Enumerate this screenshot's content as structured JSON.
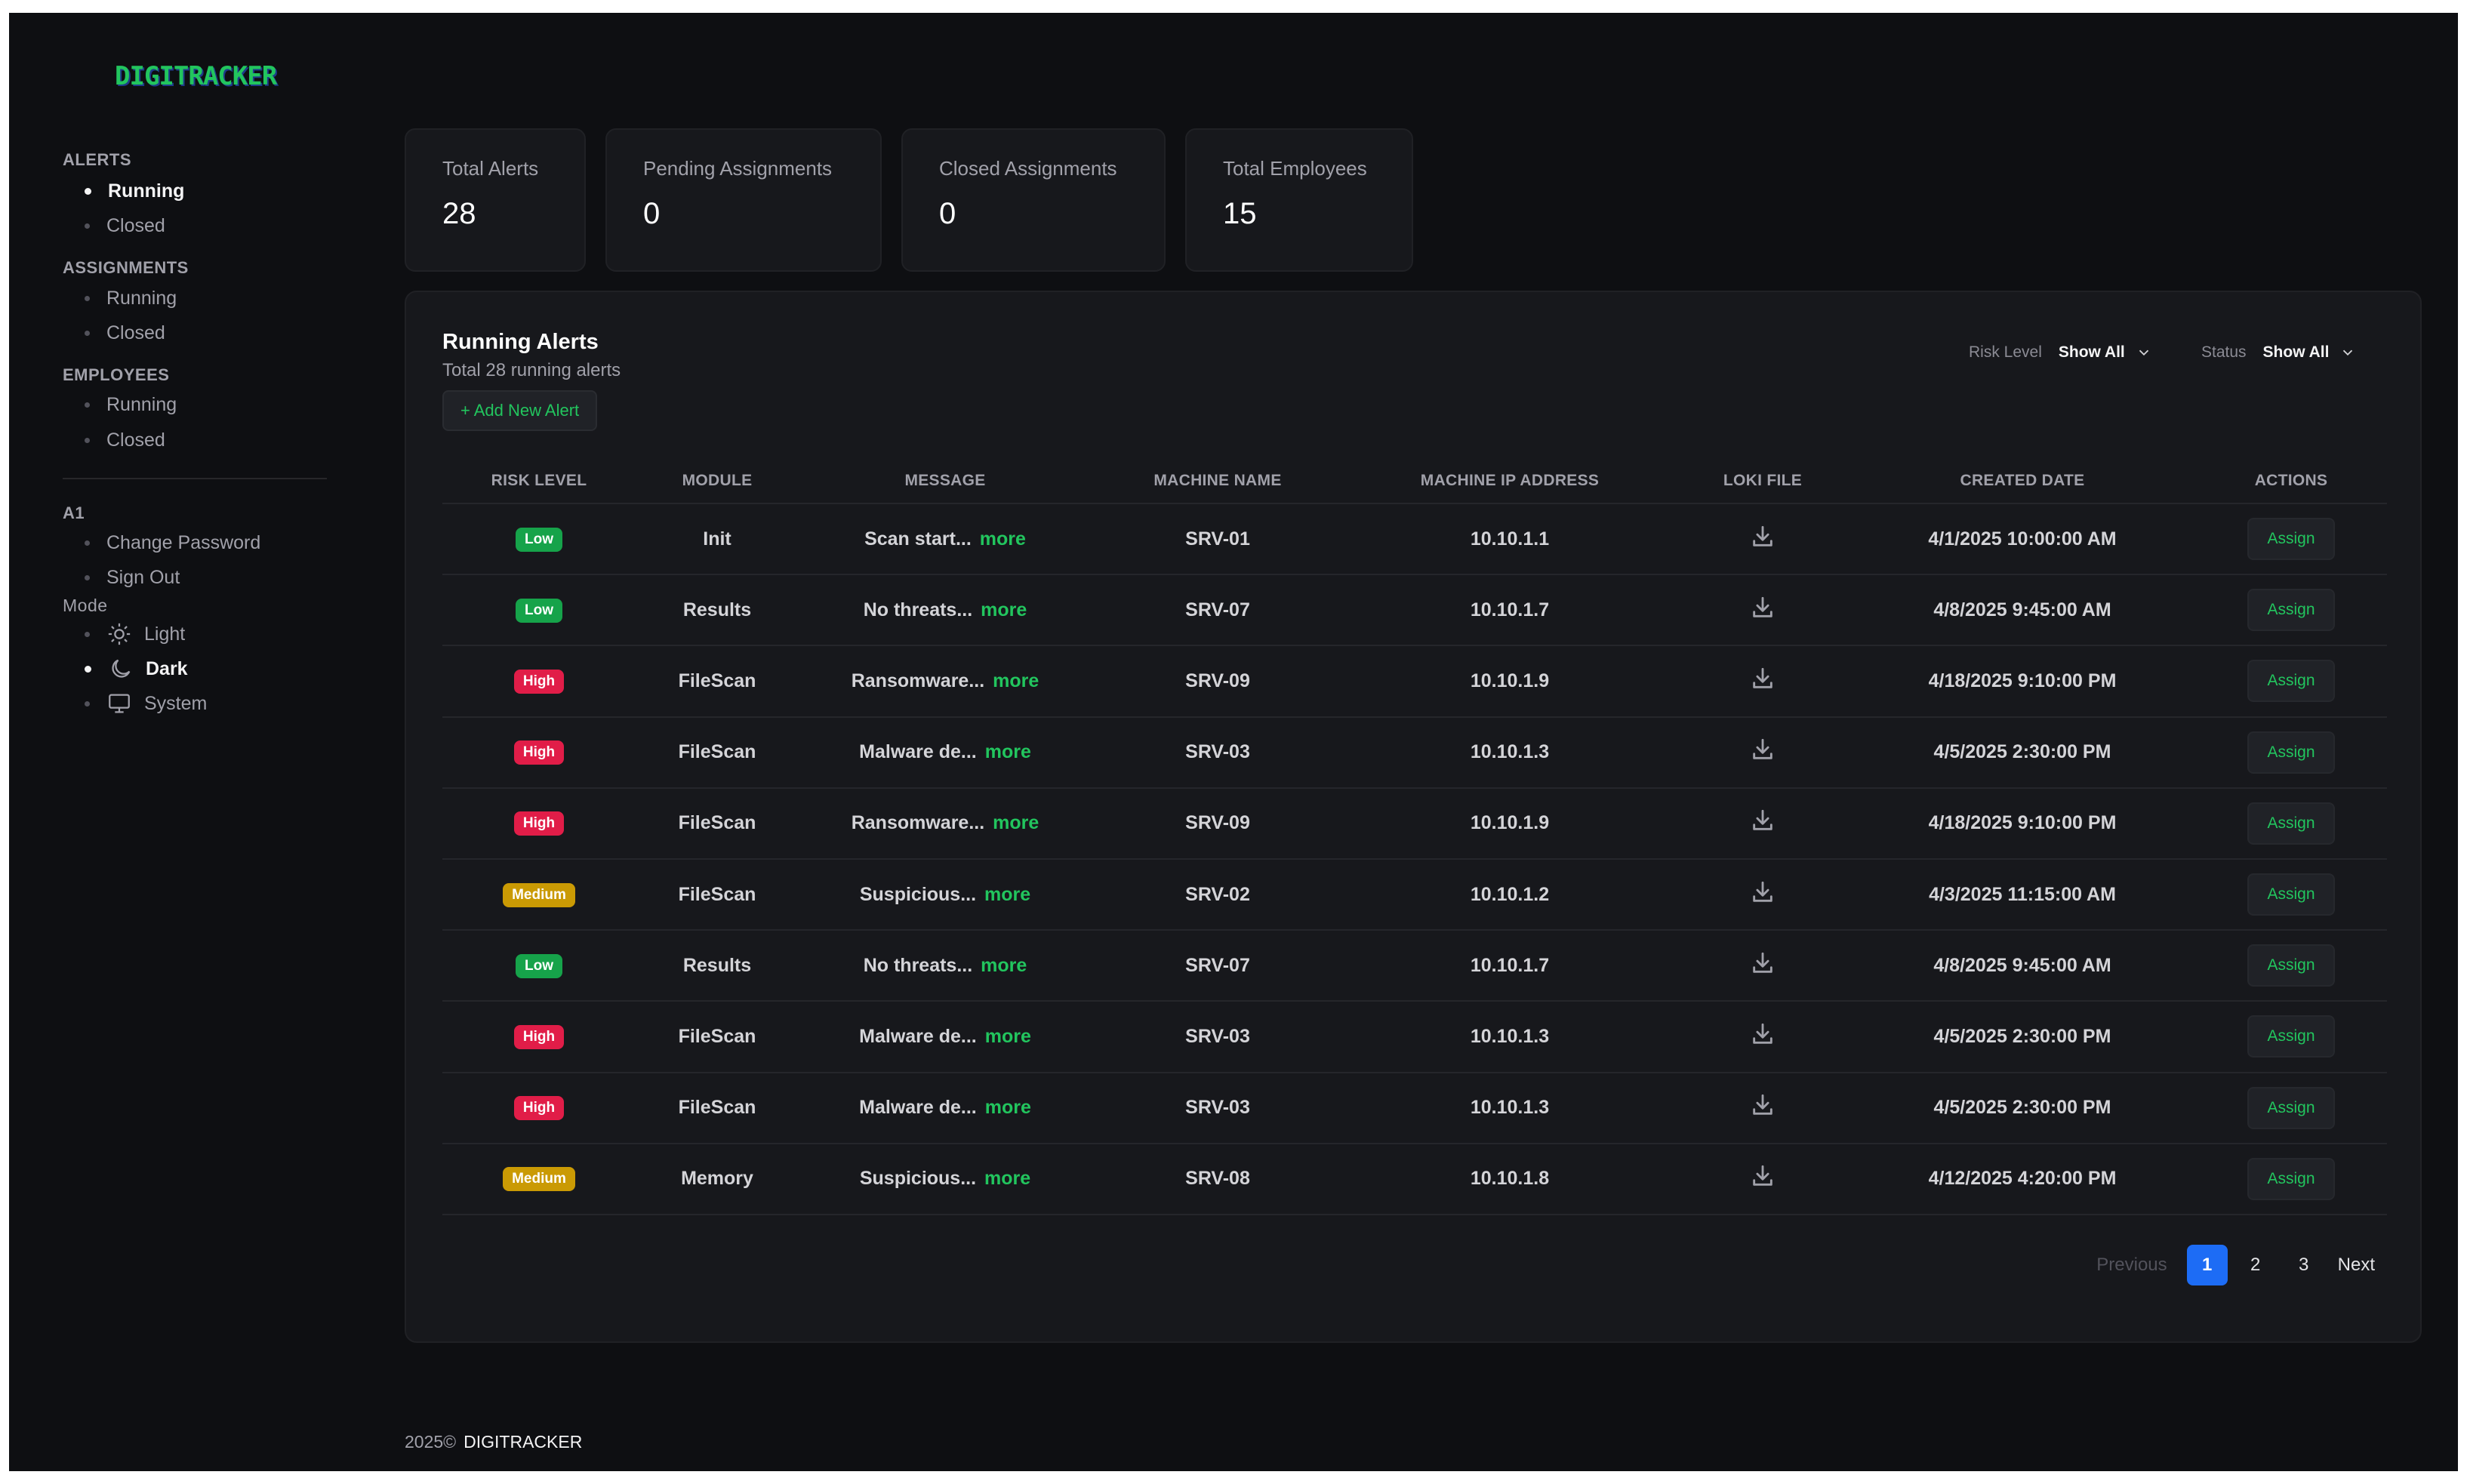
{
  "brand": {
    "logo_text": "DIGITRACKER",
    "accent": "#22c55e"
  },
  "sidebar": {
    "sections": [
      {
        "title": "ALERTS",
        "items": [
          {
            "label": "Running",
            "active": true
          },
          {
            "label": "Closed",
            "active": false
          }
        ]
      },
      {
        "title": "ASSIGNMENTS",
        "items": [
          {
            "label": "Running",
            "active": false
          },
          {
            "label": "Closed",
            "active": false
          }
        ]
      },
      {
        "title": "EMPLOYEES",
        "items": [
          {
            "label": "Running",
            "active": false
          },
          {
            "label": "Closed",
            "active": false
          }
        ]
      }
    ],
    "user": {
      "title": "A1",
      "items": [
        {
          "label": "Change Password"
        },
        {
          "label": "Sign Out"
        }
      ]
    },
    "mode": {
      "title": "Mode",
      "items": [
        {
          "label": "Light",
          "icon": "sun-icon",
          "active": false
        },
        {
          "label": "Dark",
          "icon": "moon-icon",
          "active": true
        },
        {
          "label": "System",
          "icon": "monitor-icon",
          "active": false
        }
      ]
    }
  },
  "stats": [
    {
      "label": "Total Alerts",
      "value": "28"
    },
    {
      "label": "Pending Assignments",
      "value": "0"
    },
    {
      "label": "Closed Assignments",
      "value": "0"
    },
    {
      "label": "Total Employees",
      "value": "15"
    }
  ],
  "panel": {
    "title": "Running Alerts",
    "subtitle": "Total 28 running alerts",
    "add_button": "+ Add New Alert",
    "filters": {
      "risk_label": "Risk Level",
      "risk_value": "Show All",
      "status_label": "Status",
      "status_value": "Show All"
    }
  },
  "table": {
    "columns": [
      "RISK LEVEL",
      "MODULE",
      "MESSAGE",
      "MACHINE NAME",
      "MACHINE IP ADDRESS",
      "LOKI FILE",
      "CREATED DATE",
      "ACTIONS"
    ],
    "more_label": "more",
    "action_label": "Assign",
    "rows": [
      {
        "risk": "Low",
        "module": "Init",
        "message": "Scan start...",
        "machine": "SRV-01",
        "ip": "10.10.1.1",
        "date": "4/1/2025 10:00:00 AM"
      },
      {
        "risk": "Low",
        "module": "Results",
        "message": "No threats...",
        "machine": "SRV-07",
        "ip": "10.10.1.7",
        "date": "4/8/2025 9:45:00 AM"
      },
      {
        "risk": "High",
        "module": "FileScan",
        "message": "Ransomware...",
        "machine": "SRV-09",
        "ip": "10.10.1.9",
        "date": "4/18/2025 9:10:00 PM"
      },
      {
        "risk": "High",
        "module": "FileScan",
        "message": "Malware de...",
        "machine": "SRV-03",
        "ip": "10.10.1.3",
        "date": "4/5/2025 2:30:00 PM"
      },
      {
        "risk": "High",
        "module": "FileScan",
        "message": "Ransomware...",
        "machine": "SRV-09",
        "ip": "10.10.1.9",
        "date": "4/18/2025 9:10:00 PM"
      },
      {
        "risk": "Medium",
        "module": "FileScan",
        "message": "Suspicious...",
        "machine": "SRV-02",
        "ip": "10.10.1.2",
        "date": "4/3/2025 11:15:00 AM"
      },
      {
        "risk": "Low",
        "module": "Results",
        "message": "No threats...",
        "machine": "SRV-07",
        "ip": "10.10.1.7",
        "date": "4/8/2025 9:45:00 AM"
      },
      {
        "risk": "High",
        "module": "FileScan",
        "message": "Malware de...",
        "machine": "SRV-03",
        "ip": "10.10.1.3",
        "date": "4/5/2025 2:30:00 PM"
      },
      {
        "risk": "High",
        "module": "FileScan",
        "message": "Malware de...",
        "machine": "SRV-03",
        "ip": "10.10.1.3",
        "date": "4/5/2025 2:30:00 PM"
      },
      {
        "risk": "Medium",
        "module": "Memory",
        "message": "Suspicious...",
        "machine": "SRV-08",
        "ip": "10.10.1.8",
        "date": "4/12/2025 4:20:00 PM"
      }
    ]
  },
  "pagination": {
    "previous": "Previous",
    "pages": [
      "1",
      "2",
      "3"
    ],
    "current": "1",
    "next": "Next"
  },
  "footer": {
    "year": "2025©",
    "brand": "DIGITRACKER"
  },
  "colors": {
    "low": "#16a34a",
    "high": "#e11d48",
    "medium": "#ca9a04",
    "page_active": "#1d6cf5"
  }
}
